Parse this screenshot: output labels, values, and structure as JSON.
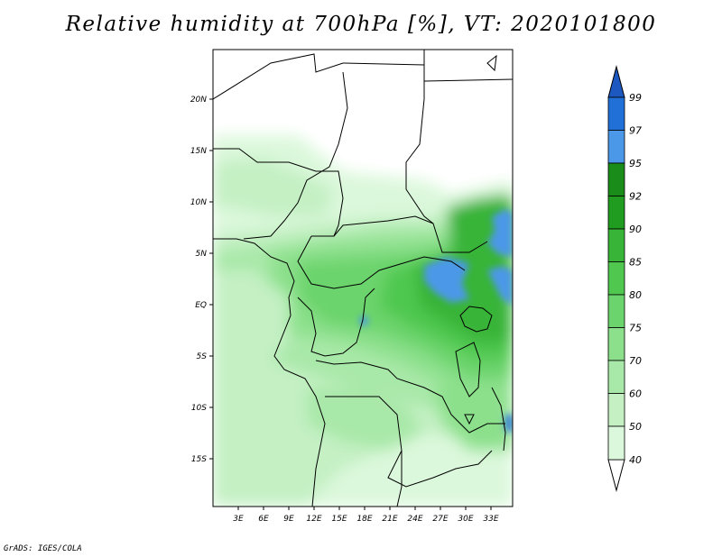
{
  "title": "Relative humidity at 700hPa [%], VT: 2020101800",
  "map": {
    "lon_labels": [
      "3E",
      "6E",
      "9E",
      "12E",
      "15E",
      "18E",
      "21E",
      "24E",
      "27E",
      "30E",
      "33E"
    ],
    "lat_labels": [
      "20N",
      "15N",
      "10N",
      "5N",
      "EQ",
      "5S",
      "10S",
      "15S"
    ]
  },
  "colorbar": {
    "levels": [
      "40",
      "50",
      "60",
      "70",
      "75",
      "80",
      "85",
      "90",
      "92",
      "95",
      "97",
      "99"
    ],
    "colors": [
      "#f0fff0",
      "#dcf8dc",
      "#c4f0c4",
      "#a8e8a8",
      "#8ce08c",
      "#6cd46c",
      "#50c850",
      "#38b438",
      "#209c20",
      "#1a8c1a",
      "#4c98e8",
      "#2070d8",
      "#1c58c0"
    ]
  },
  "footer": "GrADS: IGES/COLA"
}
